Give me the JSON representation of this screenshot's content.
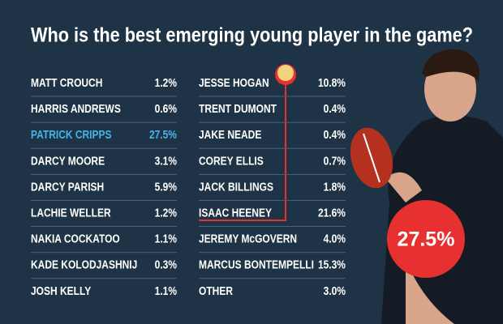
{
  "title": "Who is the best emerging young player in the game?",
  "left_column": {
    "rows": [
      {
        "name": "MATT CROUCH",
        "share": "1.2%"
      },
      {
        "name": "HARRIS ANDREWS",
        "share": "0.6%"
      },
      {
        "name": "PATRICK CRIPPS",
        "share": "27.5%",
        "color": "#45b5e8"
      },
      {
        "name": "DARCY MOORE",
        "share": "3.1%"
      },
      {
        "name": "DARCY PARISH",
        "share": "5.9%"
      },
      {
        "name": "LACHIE WELLER",
        "share": "1.2%"
      },
      {
        "name": "NAKIA COCKATOO",
        "share": "1.1%"
      },
      {
        "name": "KADE KOLODJASHNIJ",
        "share": "0.3%"
      },
      {
        "name": "JOSH KELLY",
        "share": "1.1%"
      }
    ]
  },
  "right_column": {
    "rows": [
      {
        "name": "JESSE HOGAN",
        "share": "10.8%"
      },
      {
        "name": "TRENT DUMONT",
        "share": "0.4%"
      },
      {
        "name": "JAKE NEADE",
        "share": "0.4%"
      },
      {
        "name": "COREY ELLIS",
        "share": "0.7%"
      },
      {
        "name": "JACK BILLINGS",
        "share": "1.8%"
      },
      {
        "name": "ISAAC HEENEY",
        "share": "21.6%"
      },
      {
        "name": "JEREMY McGOVERN",
        "share": "4.0%"
      },
      {
        "name": "MARCUS BONTEMPELLI",
        "share": "15.3%"
      },
      {
        "name": "OTHER",
        "share": "3.0%"
      }
    ]
  },
  "winner_badge": "27.5%"
}
